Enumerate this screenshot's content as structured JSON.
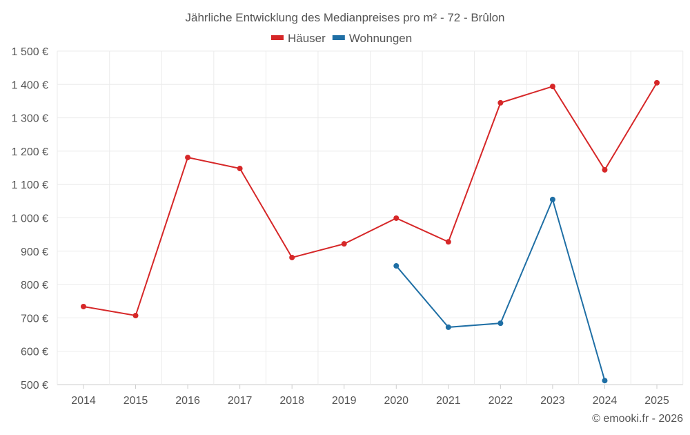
{
  "chart_data": {
    "type": "line",
    "title": "Jährliche Entwicklung des Medianpreises pro m² - 72 - Brûlon",
    "x": [
      "2014",
      "2015",
      "2016",
      "2017",
      "2018",
      "2019",
      "2020",
      "2021",
      "2022",
      "2023",
      "2024",
      "2025"
    ],
    "ylim": [
      500,
      1500
    ],
    "yticks": [
      500,
      600,
      700,
      800,
      900,
      1000,
      1100,
      1200,
      1300,
      1400,
      1500
    ],
    "ytick_labels": [
      "500 €",
      "600 €",
      "700 €",
      "800 €",
      "900 €",
      "1 000 €",
      "1 100 €",
      "1 200 €",
      "1 300 €",
      "1 400 €",
      "1 500 €"
    ],
    "grid": true,
    "legend_position": "top-center",
    "series": [
      {
        "name": "Häuser",
        "color": "#d62728",
        "values": [
          734,
          707,
          1181,
          1148,
          881,
          922,
          999,
          928,
          1345,
          1394,
          1144,
          1405
        ]
      },
      {
        "name": "Wohnungen",
        "color": "#1f6fa5",
        "values": [
          null,
          null,
          null,
          null,
          null,
          null,
          856,
          672,
          684,
          1055,
          512,
          null
        ]
      }
    ],
    "credit": "© emooki.fr - 2026"
  }
}
